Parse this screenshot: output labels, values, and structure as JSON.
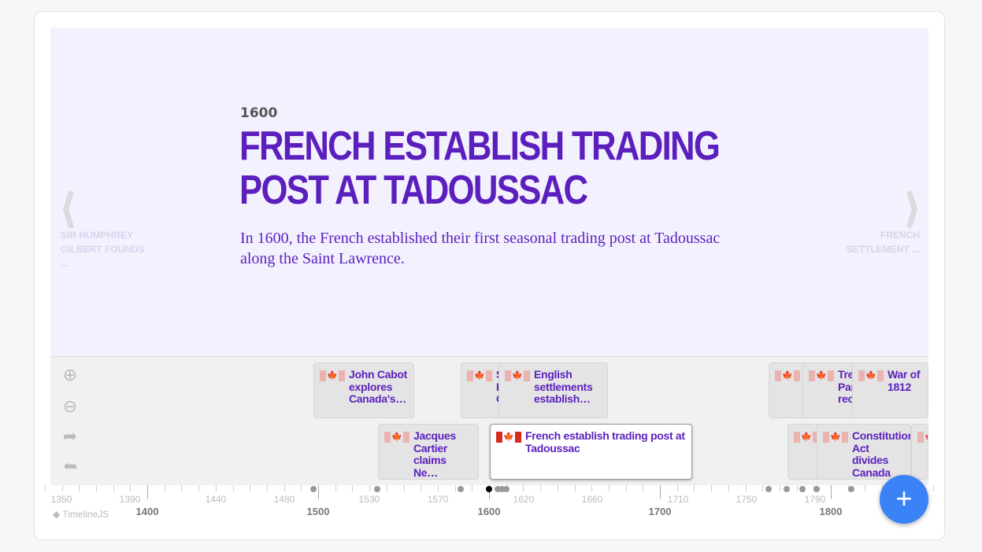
{
  "slide": {
    "date": "1600",
    "headline": "FRENCH ESTABLISH TRADING POST AT TADOUSSAC",
    "text": "In 1600, the French established their first seasonal trading post at Tadoussac along the Saint Lawrence.",
    "background": "#f3f1fd",
    "accent": "#5b1fbe"
  },
  "nav": {
    "prev": "SIR HUMPHREY GILBERT FOUNDS ...",
    "next": "FRENCH SETTLEMENT ..."
  },
  "tools": {
    "zoom_in": "zoom-in-icon",
    "zoom_out": "zoom-out-icon",
    "forward": "redo-icon",
    "back": "undo-icon"
  },
  "events": [
    {
      "title": "John Cabot explores Canada's…",
      "year": 1497
    },
    {
      "title": "Jacques Cartier claims Ne…",
      "year": 1534
    },
    {
      "title": "S… I… C…",
      "year": 1583
    },
    {
      "title": "French establish trading post at Tadoussac",
      "year": 1600,
      "active": true
    },
    {
      "title": "English settlements establish…",
      "year": 1610
    },
    {
      "title": "Constitution Act divides Canada",
      "year": 1791
    },
    {
      "title": "Tre… Par… rec…",
      "year": 1783
    },
    {
      "title": "War of 1812",
      "year": 1812
    }
  ],
  "axis": {
    "minor": [
      "1350",
      "1390",
      "1440",
      "1480",
      "1530",
      "1570",
      "1620",
      "1660",
      "1710",
      "1750",
      "1790"
    ],
    "major": [
      "1400",
      "1500",
      "1600",
      "1700",
      "1800"
    ]
  },
  "brand": "TimelineJS",
  "add_button": "+"
}
